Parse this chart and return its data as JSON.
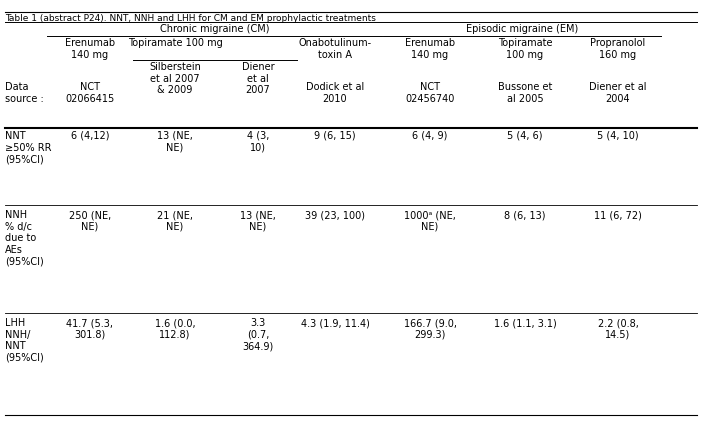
{
  "title": "Table 1 (abstract P24). NNT, NNH and LHH for CM and EM prophylactic treatments",
  "cm_header": "Chronic migraine (CM)",
  "em_header": "Episodic migraine (EM)",
  "data_source_label": "Data\nsource :",
  "data_sources": [
    "NCT\n02066415",
    "Silberstein\net al 2007\n& 2009",
    "Diener\net al\n2007",
    "Dodick et al\n2010",
    "NCT\n02456740",
    "Bussone et\nal 2005",
    "Diener et al\n2004"
  ],
  "col_headers": [
    "Erenumab\n140 mg",
    "Topiramate 100 mg",
    "",
    "Onabotulinum-\ntoxin A",
    "Erenumab\n140 mg",
    "Topiramate\n100 mg",
    "Propranolol\n160 mg"
  ],
  "topi_sub_label": "Topiramate 100 mg",
  "topi_sub_cols": [
    "Silberstein\net al 2007\n& 2009",
    "Diener\net al\n2007"
  ],
  "row_labels": [
    "NNT\n≥50% RR\n(95%CI)",
    "NNH\n% d/c\ndue to\nAEs\n(95%CI)",
    "LHH\nNNH/\nNNT\n(95%CI)"
  ],
  "row_data": [
    [
      "6 (4,12)",
      "13 (NE,\nNE)",
      "4 (3,\n10)",
      "9 (6, 15)",
      "6 (4, 9)",
      "5 (4, 6)",
      "5 (4, 10)"
    ],
    [
      "250 (NE,\nNE)",
      "21 (NE,\nNE)",
      "13 (NE,\nNE)",
      "39 (23, 100)",
      "1000ᵃ (NE,\nNE)",
      "8 (6, 13)",
      "11 (6, 72)"
    ],
    [
      "41.7 (5.3,\n301.8)",
      "1.6 (0.0,\n112.8)",
      "3.3\n(0.7,\n364.9)",
      "4.3 (1.9, 11.4)",
      "166.7 (9.0,\n299.3)",
      "1.6 (1.1, 3.1)",
      "2.2 (0.8,\n14.5)"
    ]
  ],
  "bg_color": "#ffffff",
  "text_color": "#000000",
  "line_color": "#000000",
  "font_size": 7.0,
  "title_font_size": 7.5
}
